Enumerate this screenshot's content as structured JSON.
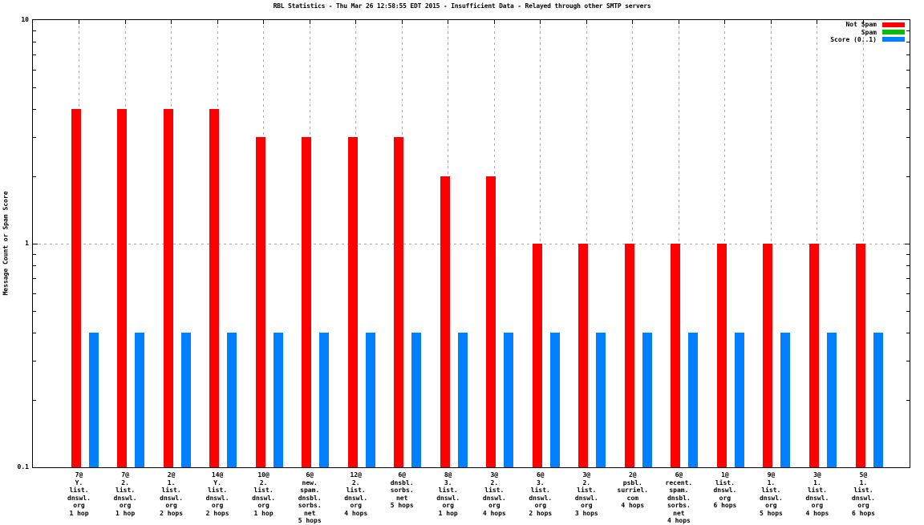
{
  "chart_data": {
    "type": "bar",
    "title": "RBL Statistics - Thu Mar 26 12:58:55 EDT 2015 - Insufficient Data - Relayed through other SMTP servers",
    "ylabel": "Message Count or Spam Score",
    "xlabel": "",
    "yscale": "log",
    "ylim": [
      0.1,
      10
    ],
    "yticks": [
      {
        "label": "10",
        "value": 10
      },
      {
        "label": "1",
        "value": 1
      },
      {
        "label": "0.1",
        "value": 0.1
      }
    ],
    "grid": {
      "horizontal_at": [
        1
      ],
      "vertical_at_categories": true,
      "style": "dashed"
    },
    "legend_position": "top-right",
    "categories": [
      [
        "7@",
        "Y.",
        "list.",
        "dnswl.",
        "org",
        "1 hop"
      ],
      [
        "7@",
        "2.",
        "list.",
        "dnswl.",
        "org",
        "1 hop"
      ],
      [
        "2@",
        "1.",
        "list.",
        "dnswl.",
        "org",
        "2 hops"
      ],
      [
        "14@",
        "Y.",
        "list.",
        "dnswl.",
        "org",
        "2 hops"
      ],
      [
        "10@",
        "2.",
        "list.",
        "dnswl.",
        "org",
        "1 hop"
      ],
      [
        "6@",
        "new.",
        "spam.",
        "dnsbl.",
        "sorbs.",
        "net",
        "5 hops"
      ],
      [
        "12@",
        "2.",
        "list.",
        "dnswl.",
        "org",
        "4 hops"
      ],
      [
        "6@",
        "dnsbl.",
        "sorbs.",
        "net",
        "5 hops"
      ],
      [
        "8@",
        "3.",
        "list.",
        "dnswl.",
        "org",
        "1 hop"
      ],
      [
        "3@",
        "2.",
        "list.",
        "dnswl.",
        "org",
        "4 hops"
      ],
      [
        "6@",
        "3.",
        "list.",
        "dnswl.",
        "org",
        "2 hops"
      ],
      [
        "3@",
        "2.",
        "list.",
        "dnswl.",
        "org",
        "3 hops"
      ],
      [
        "2@",
        "psbl.",
        "surriel.",
        "com",
        "4 hops"
      ],
      [
        "6@",
        "recent.",
        "spam.",
        "dnsbl.",
        "sorbs.",
        "net",
        "4 hops"
      ],
      [
        "1@",
        "list.",
        "dnswl.",
        "org",
        "6 hops"
      ],
      [
        "9@",
        "1.",
        "list.",
        "dnswl.",
        "org",
        "5 hops"
      ],
      [
        "3@",
        "1.",
        "list.",
        "dnswl.",
        "org",
        "4 hops"
      ],
      [
        "5@",
        "1.",
        "list.",
        "dnswl.",
        "org",
        "6 hops"
      ]
    ],
    "series": [
      {
        "name": "Not Spam",
        "color": "#ff0000",
        "values": [
          4,
          4,
          4,
          4,
          3,
          3,
          3,
          3,
          2,
          2,
          1,
          1,
          1,
          1,
          1,
          1,
          1,
          1
        ]
      },
      {
        "name": "Spam",
        "color": "#00c000",
        "values": [
          0,
          0,
          0,
          0,
          0,
          0,
          0,
          0,
          0,
          0,
          0,
          0,
          0,
          0,
          0,
          0,
          0,
          0
        ]
      },
      {
        "name": "Score (0..1)",
        "color": "#0080ff",
        "values": [
          0.4,
          0.4,
          0.4,
          0.4,
          0.4,
          0.4,
          0.4,
          0.4,
          0.4,
          0.4,
          0.4,
          0.4,
          0.4,
          0.4,
          0.4,
          0.4,
          0.4,
          0.4
        ]
      }
    ],
    "colors": {
      "axis": "#000000",
      "grid": "#a8a8a8",
      "background": "#ffffff"
    }
  }
}
